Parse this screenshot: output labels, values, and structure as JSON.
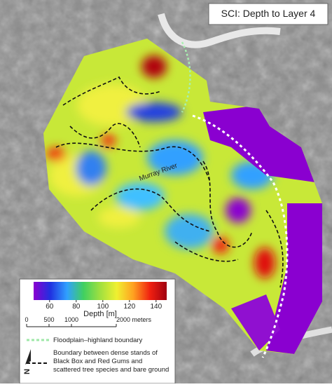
{
  "title": "SCI: Depth to Layer 4",
  "map_labels": {
    "river": "Murray River"
  },
  "colorbar": {
    "label": "Depth [m]",
    "range": [
      48,
      148
    ],
    "ticks": [
      60,
      80,
      100,
      120,
      140
    ],
    "colors": [
      "#8a00d0",
      "#2030e0",
      "#30a0ff",
      "#40d060",
      "#a0e040",
      "#f0f030",
      "#ffa020",
      "#f02010",
      "#a00010"
    ]
  },
  "scale_bar": {
    "range": [
      0,
      2000
    ],
    "ticks": [
      0,
      500,
      1000,
      {
        "value": 2000,
        "label": "2000 meters"
      }
    ]
  },
  "legend": {
    "floodplain": "Floodplain–highland boundary",
    "boundary": [
      "Boundary between dense stands of",
      "Black Box and Red Gums and",
      "scattered tree species and bare ground"
    ]
  },
  "north": "N"
}
